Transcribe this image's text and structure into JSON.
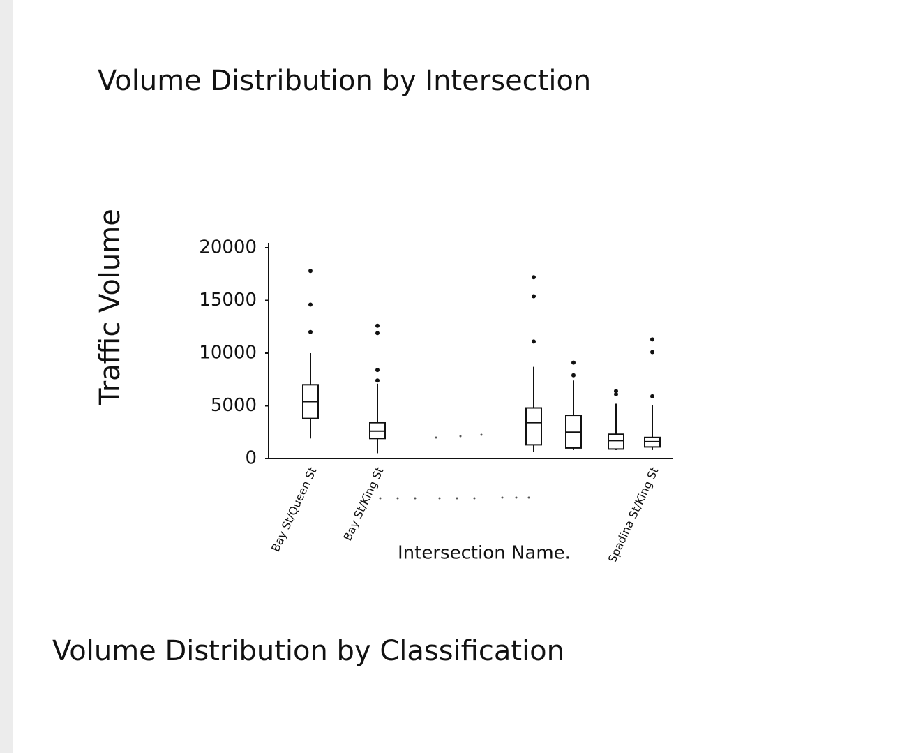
{
  "chart_data": [
    {
      "type": "box",
      "title": "Volume Distribution by Intersection",
      "y_label": "Traffic Volume",
      "x_label": "Intersection Name.",
      "categories": [
        "Bay St/Queen St",
        "Bay St/King St",
        null,
        null,
        null,
        "Spadina St/King St"
      ],
      "boxes": [
        {
          "min": 1900,
          "q1": 3800,
          "median": 5400,
          "q3": 7000,
          "max": 10000,
          "outliers": [
            12000,
            14600,
            17800
          ]
        },
        {
          "min": 500,
          "q1": 1900,
          "median": 2600,
          "q3": 3400,
          "max": 7100,
          "outliers": [
            7400,
            8400,
            11900,
            12600
          ]
        },
        {
          "min": 600,
          "q1": 1300,
          "median": 3400,
          "q3": 4800,
          "max": 8700,
          "outliers": [
            11100,
            15400,
            17200
          ]
        },
        {
          "min": 800,
          "q1": 1000,
          "median": 2500,
          "q3": 4100,
          "max": 7400,
          "outliers": [
            7900,
            9100
          ]
        },
        {
          "min": 800,
          "q1": 900,
          "median": 1700,
          "q3": 2300,
          "max": 5200,
          "outliers": [
            6100,
            6400
          ]
        },
        {
          "min": 800,
          "q1": 1100,
          "median": 1600,
          "q3": 2000,
          "max": 5100,
          "outliers": [
            5900,
            10100,
            11300
          ]
        }
      ],
      "color": "#111111",
      "ylim": [
        0,
        20000
      ],
      "yticks": [
        0,
        5000,
        10000,
        15000,
        20000
      ]
    },
    {
      "type": "box",
      "title": "Volume Distribution by Classification"
    }
  ]
}
